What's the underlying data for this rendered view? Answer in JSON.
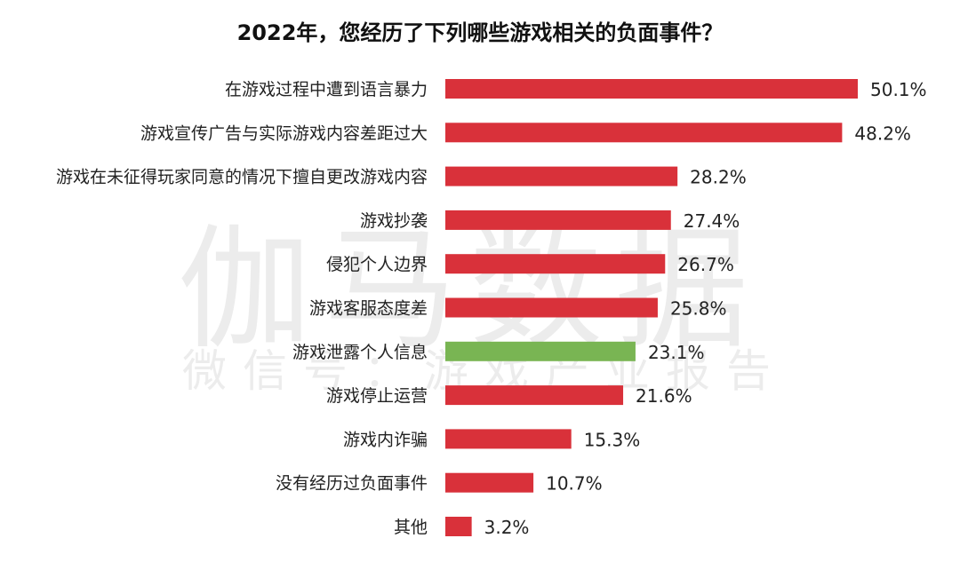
{
  "watermark": {
    "main": "伽马数据",
    "sub": "微信号：游戏产业报告"
  },
  "chart_data": {
    "type": "bar",
    "orientation": "horizontal",
    "title": "2022年，您经历了下列哪些游戏相关的负面事件？",
    "unit": "%",
    "categories": [
      "在游戏过程中遭到语言暴力",
      "游戏宣传广告与实际游戏内容差距过大",
      "游戏在未征得玩家同意的情况下擅自更改游戏内容",
      "游戏抄袭",
      "侵犯个人边界",
      "游戏客服态度差",
      "游戏泄露个人信息",
      "游戏停止运营",
      "游戏内诈骗",
      "没有经历过负面事件",
      "其他"
    ],
    "values": [
      50.1,
      48.2,
      28.2,
      27.4,
      26.7,
      25.8,
      23.1,
      21.6,
      15.3,
      10.7,
      3.2
    ],
    "value_labels": [
      "50.1%",
      "48.2%",
      "28.2%",
      "27.4%",
      "26.7%",
      "25.8%",
      "23.1%",
      "21.6%",
      "15.3%",
      "10.7%",
      "3.2%"
    ],
    "highlight_index": 6,
    "colors": {
      "bar": "#d9313a",
      "highlight": "#79b553"
    },
    "grid": false,
    "legend": "none"
  }
}
